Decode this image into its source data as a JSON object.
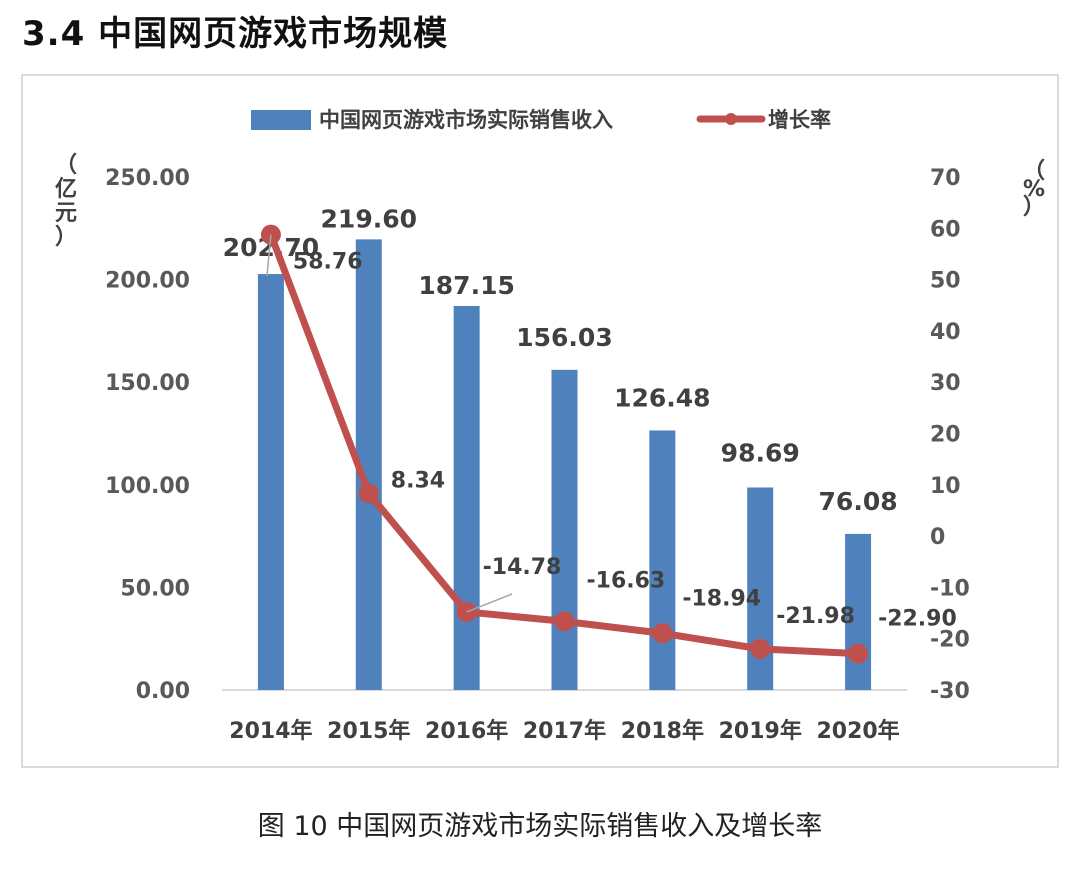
{
  "page": {
    "heading": "3.4 中国网页游戏市场规模",
    "caption": "图 10  中国网页游戏市场实际销售收入及增长率"
  },
  "chart_data": {
    "type": "bar",
    "categories": [
      "2014年",
      "2015年",
      "2016年",
      "2017年",
      "2018年",
      "2019年",
      "2020年"
    ],
    "series": [
      {
        "name": "中国网页游戏市场实际销售收入",
        "type": "bar",
        "axis": "left",
        "color": "#4f81bd",
        "values": [
          202.7,
          219.6,
          187.15,
          156.03,
          126.48,
          98.69,
          76.08
        ],
        "labels": [
          "202.70",
          "219.60",
          "187.15",
          "156.03",
          "126.48",
          "98.69",
          "76.08"
        ]
      },
      {
        "name": "增长率",
        "type": "line",
        "axis": "right",
        "color": "#c0504d",
        "values": [
          58.76,
          8.34,
          -14.78,
          -16.63,
          -18.94,
          -21.98,
          -22.9
        ],
        "labels": [
          "58.76",
          "8.34",
          "-14.78",
          "-16.63",
          "-18.94",
          "-21.98",
          "-22.90"
        ]
      }
    ],
    "y_left": {
      "unit_label": [
        "（",
        "亿",
        "元",
        "）"
      ],
      "range": [
        0,
        250
      ],
      "ticks": [
        "0.00",
        "50.00",
        "100.00",
        "150.00",
        "200.00",
        "250.00"
      ]
    },
    "y_right": {
      "unit_label": [
        "（",
        "%",
        "）"
      ],
      "range": [
        -30,
        70
      ],
      "ticks": [
        "-30",
        "-20",
        "-10",
        "0",
        "10",
        "20",
        "30",
        "40",
        "50",
        "60",
        "70"
      ]
    },
    "legend_position": "top",
    "grid": false
  }
}
